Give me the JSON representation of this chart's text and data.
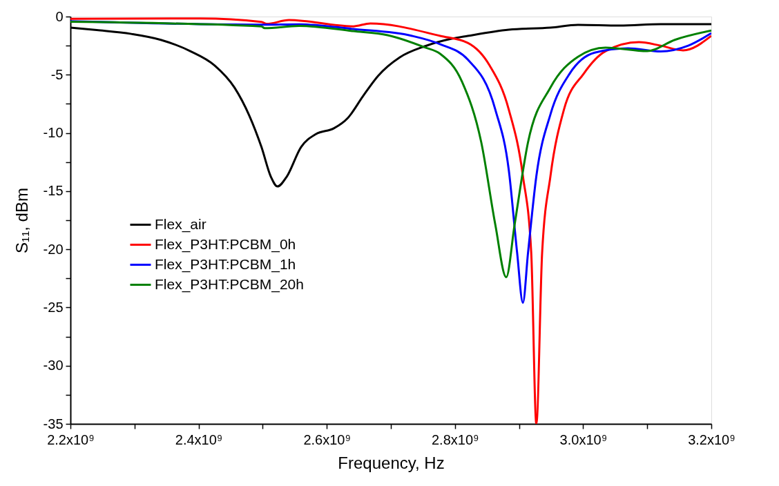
{
  "chart_data": {
    "type": "line",
    "xlabel": "Frequency, Hz",
    "ylabel": "S₁₁, dBm",
    "xlim": [
      2200000000.0,
      3200000000.0
    ],
    "ylim": [
      -35,
      0
    ],
    "xticks": [
      {
        "value": 2200000000.0,
        "label": "2.2x10⁹"
      },
      {
        "value": 2300000000.0,
        "label": null
      },
      {
        "value": 2400000000.0,
        "label": "2.4x10⁹"
      },
      {
        "value": 2500000000.0,
        "label": null
      },
      {
        "value": 2600000000.0,
        "label": "2.6x10⁹"
      },
      {
        "value": 2700000000.0,
        "label": null
      },
      {
        "value": 2800000000.0,
        "label": "2.8x10⁹"
      },
      {
        "value": 2900000000.0,
        "label": null
      },
      {
        "value": 3000000000.0,
        "label": "3.0x10⁹"
      },
      {
        "value": 3100000000.0,
        "label": null
      },
      {
        "value": 3200000000.0,
        "label": "3.2x10⁹"
      }
    ],
    "yticks": [
      0,
      {
        "value": -2.5,
        "label": null
      },
      -5,
      {
        "value": -7.5,
        "label": null
      },
      -10,
      {
        "value": -12.5,
        "label": null
      },
      -15,
      {
        "value": -17.5,
        "label": null
      },
      -20,
      {
        "value": -22.5,
        "label": null
      },
      -25,
      {
        "value": -27.5,
        "label": null
      },
      -30,
      {
        "value": -32.5,
        "label": null
      },
      -35
    ],
    "grid": false,
    "legend": "left",
    "line_style": "solid",
    "marker": "none",
    "series": [
      {
        "name": "Flex_air",
        "color": "#000000",
        "x": [
          2200000000.0,
          2241000000.0,
          2295000000.0,
          2341000000.0,
          2387000000.0,
          2425000000.0,
          2456000000.0,
          2479000000.0,
          2498000000.0,
          2513000000.0,
          2523000000.0,
          2537000000.0,
          2560000000.0,
          2583000000.0,
          2611000000.0,
          2633000000.0,
          2657000000.0,
          2680000000.0,
          2714000000.0,
          2753000000.0,
          2795000000.0,
          2820000000.0,
          2884000000.0,
          2949000000.0,
          2992000000.0,
          3057000000.0,
          3121000000.0,
          3200000000.0
        ],
        "values": [
          -0.95,
          -1.16,
          -1.49,
          -2.0,
          -2.97,
          -4.2,
          -6.1,
          -8.5,
          -11.2,
          -13.8,
          -14.6,
          -13.8,
          -11.2,
          -10.1,
          -9.6,
          -8.7,
          -6.8,
          -5.1,
          -3.5,
          -2.55,
          -1.9,
          -1.66,
          -1.13,
          -0.95,
          -0.71,
          -0.77,
          -0.65,
          -0.65
        ]
      },
      {
        "name": "Flex_P3HT:PCBM_0h",
        "color": "#ff0000",
        "x": [
          2200000000.0,
          2403000000.0,
          2498000000.0,
          2506000000.0,
          2541000000.0,
          2641000000.0,
          2668000000.0,
          2777000000.0,
          2820000000.0,
          2854000000.0,
          2884000000.0,
          2906000000.0,
          2919000000.0,
          2927000000.0,
          2936000000.0,
          2949000000.0,
          2970000000.0,
          3001000000.0,
          3035000000.0,
          3087000000.0,
          3121000000.0,
          3156000000.0,
          3200000000.0
        ],
        "values": [
          -0.2,
          -0.16,
          -0.46,
          -0.63,
          -0.3,
          -0.84,
          -0.59,
          -1.66,
          -2.26,
          -4.2,
          -8.0,
          -13.7,
          -20.3,
          -35,
          -20.3,
          -13.7,
          -8.0,
          -4.9,
          -2.97,
          -2.2,
          -2.5,
          -2.9,
          -1.66
        ]
      },
      {
        "name": "Flex_P3HT:PCBM_1h",
        "color": "#0000ff",
        "x": [
          2200000000.0,
          2500000000.0,
          2557000000.0,
          2641000000.0,
          2733000000.0,
          2777000000.0,
          2820000000.0,
          2863000000.0,
          2884000000.0,
          2897000000.0,
          2906000000.0,
          2914000000.0,
          2927000000.0,
          2949000000.0,
          2979000000.0,
          3018000000.0,
          3070000000.0,
          3121000000.0,
          3164000000.0,
          3200000000.0
        ],
        "values": [
          -0.4,
          -0.7,
          -0.66,
          -1.07,
          -1.66,
          -2.38,
          -3.7,
          -8.0,
          -13.2,
          -20.3,
          -24.6,
          -20.3,
          -13.7,
          -8.4,
          -4.9,
          -3.1,
          -2.73,
          -3.0,
          -2.5,
          -1.43
        ]
      },
      {
        "name": "Flex_P3HT:PCBM_20h",
        "color": "#008000",
        "x": [
          2200000000.0,
          2498000000.0,
          2503000000.0,
          2557000000.0,
          2641000000.0,
          2695000000.0,
          2753000000.0,
          2777000000.0,
          2811000000.0,
          2841000000.0,
          2863000000.0,
          2880000000.0,
          2893000000.0,
          2914000000.0,
          2949000000.0,
          2992000000.0,
          3035000000.0,
          3100000000.0,
          3143000000.0,
          3200000000.0
        ],
        "values": [
          -0.45,
          -0.84,
          -1.0,
          -0.8,
          -1.25,
          -1.6,
          -2.65,
          -3.2,
          -5.6,
          -10.8,
          -17.9,
          -22.4,
          -17.9,
          -10.8,
          -6.1,
          -3.45,
          -2.67,
          -2.97,
          -2.0,
          -1.2
        ]
      }
    ]
  }
}
